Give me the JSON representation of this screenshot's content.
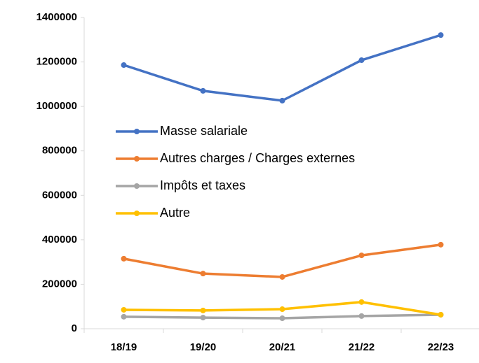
{
  "chart_data": {
    "type": "line",
    "categories": [
      "18/19",
      "19/20",
      "20/21",
      "21/22",
      "22/23"
    ],
    "series": [
      {
        "name": "Masse salariale",
        "color": "#4472c4",
        "values": [
          1186000,
          1070000,
          1026000,
          1208000,
          1321000
        ]
      },
      {
        "name": "Autres charges / Charges externes",
        "color": "#ed7d31",
        "values": [
          315000,
          248000,
          233000,
          330000,
          378000
        ]
      },
      {
        "name": "Impôts et taxes",
        "color": "#a5a5a5",
        "values": [
          54000,
          50000,
          47000,
          57000,
          63000
        ]
      },
      {
        "name": "Autre",
        "color": "#ffc000",
        "values": [
          85000,
          82000,
          88000,
          120000,
          63000
        ]
      }
    ],
    "ylim": [
      0,
      1400000
    ],
    "yticks": [
      0,
      200000,
      400000,
      600000,
      800000,
      1000000,
      1200000,
      1400000
    ],
    "legend": "center-left"
  }
}
